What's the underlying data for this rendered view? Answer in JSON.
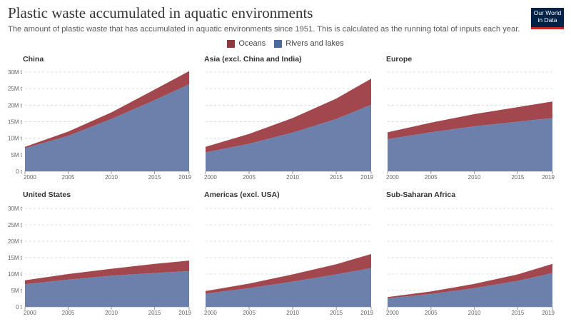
{
  "title": "Plastic waste accumulated in aquatic environments",
  "subtitle": "The amount of plastic waste that has accumulated in aquatic environments since 1951. This is calculated as the running total of inputs each year.",
  "logo": {
    "line1": "Our World",
    "line2": "in Data",
    "bg": "#002147",
    "accent": "#ce261e"
  },
  "colors": {
    "oceans": "#a2474d",
    "rivers": "#6b80ab"
  },
  "legend": [
    {
      "label": "Oceans",
      "color": "#8b3a3e"
    },
    {
      "label": "Rivers and lakes",
      "color": "#4c6a9c"
    }
  ],
  "chart_data": {
    "type": "area",
    "stacked": true,
    "ylim": [
      0,
      30000000
    ],
    "y_ticks": [
      "0 t",
      "5M t",
      "10M t",
      "15M t",
      "20M t",
      "25M t",
      "30M t"
    ],
    "x_ticks": [
      "2000",
      "2005",
      "2010",
      "2015",
      "2019"
    ],
    "x_range": [
      2000,
      2019
    ],
    "grid": true,
    "legend_position": "top-center",
    "series_names": [
      "Rivers and lakes",
      "Oceans"
    ],
    "panels": [
      {
        "name": "China",
        "x": [
          2000,
          2005,
          2010,
          2015,
          2019
        ],
        "rivers": [
          7000000,
          10700000,
          15800000,
          21500000,
          26300000
        ],
        "total": [
          7400000,
          12000000,
          17800000,
          24700000,
          30300000
        ]
      },
      {
        "name": "Asia (excl. China and India)",
        "x": [
          2000,
          2005,
          2010,
          2015,
          2019
        ],
        "rivers": [
          5700000,
          8300000,
          11700000,
          15800000,
          20100000
        ],
        "total": [
          7400000,
          11300000,
          16100000,
          22000000,
          28000000
        ]
      },
      {
        "name": "Europe",
        "x": [
          2000,
          2005,
          2010,
          2015,
          2019
        ],
        "rivers": [
          9700000,
          11800000,
          13600000,
          15000000,
          16100000
        ],
        "total": [
          11800000,
          14700000,
          17300000,
          19400000,
          21100000
        ]
      },
      {
        "name": "United States",
        "x": [
          2000,
          2005,
          2010,
          2015,
          2019
        ],
        "rivers": [
          6900000,
          8300000,
          9500000,
          10300000,
          10900000
        ],
        "total": [
          8100000,
          10000000,
          11600000,
          13100000,
          14100000
        ]
      },
      {
        "name": "Americas (excl. USA)",
        "x": [
          2000,
          2005,
          2010,
          2015,
          2019
        ],
        "rivers": [
          4000000,
          5700000,
          7700000,
          9900000,
          11800000
        ],
        "total": [
          4800000,
          7100000,
          9900000,
          13000000,
          16100000
        ]
      },
      {
        "name": "Sub-Saharan Africa",
        "x": [
          2000,
          2005,
          2010,
          2015,
          2019
        ],
        "rivers": [
          2600000,
          3900000,
          5700000,
          7900000,
          10300000
        ],
        "total": [
          3000000,
          4700000,
          7000000,
          9900000,
          13100000
        ]
      }
    ]
  }
}
